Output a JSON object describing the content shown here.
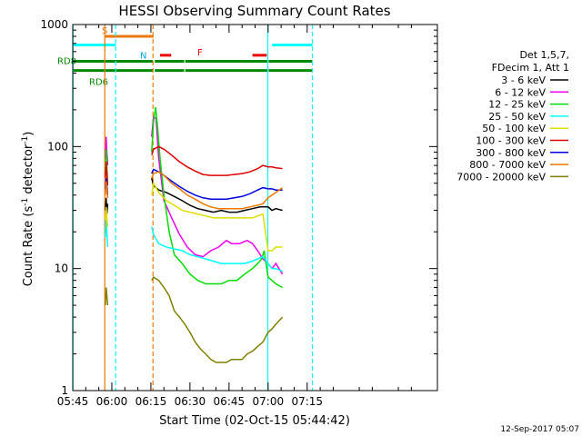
{
  "chart_data": {
    "type": "line",
    "title": "HESSI Observing Summary Count Rates",
    "xlabel": "Start Time (02-Oct-15 05:44:42)",
    "ylabel_main": "Count Rate (s",
    "ylabel_sup1": "-1",
    "ylabel_mid": " detector",
    "ylabel_sup2": "-1",
    "ylabel_end": ")",
    "xlim_min": [
      345,
      485
    ],
    "ylim": [
      1,
      1000
    ],
    "yscale": "log",
    "x_ticks": [
      {
        "min": 345,
        "label": "05:45"
      },
      {
        "min": 360,
        "label": "06:00"
      },
      {
        "min": 375,
        "label": "06:15"
      },
      {
        "min": 390,
        "label": "06:30"
      },
      {
        "min": 405,
        "label": "06:45"
      },
      {
        "min": 420,
        "label": "07:00"
      },
      {
        "min": 435,
        "label": "07:15"
      }
    ],
    "y_ticks": [
      {
        "value": 1,
        "label": "1"
      },
      {
        "value": 10,
        "label": "10"
      },
      {
        "value": 100,
        "label": "100"
      },
      {
        "value": 1000,
        "label": "1000"
      }
    ],
    "legend": {
      "position": "right",
      "header": [
        "Det 1,5,7,",
        "FDecim 1, Att 1"
      ]
    },
    "series": [
      {
        "name": "3 - 6 keV",
        "color": "#000000",
        "points": [
          [
            357.5,
            30
          ],
          [
            357.8,
            38
          ],
          [
            358.1,
            28
          ],
          [
            358.4,
            34
          ],
          [
            375.3,
            55
          ],
          [
            376,
            48
          ],
          [
            378,
            44
          ],
          [
            381,
            42
          ],
          [
            384,
            39
          ],
          [
            387,
            36
          ],
          [
            390,
            33
          ],
          [
            393,
            31
          ],
          [
            396,
            30
          ],
          [
            399,
            29
          ],
          [
            402,
            30
          ],
          [
            405,
            29
          ],
          [
            408,
            29
          ],
          [
            411,
            30
          ],
          [
            414,
            31
          ],
          [
            417,
            32
          ],
          [
            420,
            32
          ],
          [
            421.5,
            30
          ],
          [
            423,
            31
          ],
          [
            425.5,
            30
          ]
        ]
      },
      {
        "name": "6 - 12 keV",
        "color": "#ee00ee",
        "points": [
          [
            357.5,
            80
          ],
          [
            357.8,
            120
          ],
          [
            358.1,
            90
          ],
          [
            358.4,
            70
          ],
          [
            375.3,
            120
          ],
          [
            376,
            175
          ],
          [
            377,
            170
          ],
          [
            378,
            80
          ],
          [
            380,
            36
          ],
          [
            383,
            26
          ],
          [
            386,
            19
          ],
          [
            389,
            15
          ],
          [
            392,
            13
          ],
          [
            395,
            12.5
          ],
          [
            398,
            14
          ],
          [
            401,
            15
          ],
          [
            404,
            17
          ],
          [
            406,
            16
          ],
          [
            409,
            16
          ],
          [
            412,
            17
          ],
          [
            414,
            16
          ],
          [
            416,
            14
          ],
          [
            418,
            12
          ],
          [
            420,
            11
          ],
          [
            421.5,
            10
          ],
          [
            423,
            11
          ],
          [
            425.5,
            9
          ]
        ]
      },
      {
        "name": "12 - 25 keV",
        "color": "#00dd00",
        "points": [
          [
            357.5,
            60
          ],
          [
            357.8,
            95
          ],
          [
            358.1,
            70
          ],
          [
            358.4,
            50
          ],
          [
            375.3,
            90
          ],
          [
            376,
            160
          ],
          [
            376.8,
            210
          ],
          [
            377.5,
            150
          ],
          [
            378.5,
            80
          ],
          [
            380,
            40
          ],
          [
            382,
            20
          ],
          [
            384,
            13
          ],
          [
            387,
            11
          ],
          [
            390,
            9
          ],
          [
            393,
            8
          ],
          [
            396,
            7.5
          ],
          [
            399,
            7.5
          ],
          [
            402,
            7.5
          ],
          [
            405,
            8
          ],
          [
            408,
            8
          ],
          [
            411,
            9
          ],
          [
            414,
            10
          ],
          [
            416,
            11
          ],
          [
            417.5,
            12
          ],
          [
            418.5,
            14
          ],
          [
            420,
            8.5
          ],
          [
            421.5,
            8
          ],
          [
            423,
            7.5
          ],
          [
            425.5,
            7
          ]
        ]
      },
      {
        "name": "25 - 50 keV",
        "color": "#00ffff",
        "points": [
          [
            357.5,
            18
          ],
          [
            357.8,
            25
          ],
          [
            358.1,
            20
          ],
          [
            358.4,
            15
          ],
          [
            375.3,
            22
          ],
          [
            376,
            19
          ],
          [
            378,
            16
          ],
          [
            381,
            15
          ],
          [
            384,
            14.5
          ],
          [
            387,
            14
          ],
          [
            390,
            13
          ],
          [
            393,
            12.5
          ],
          [
            396,
            12
          ],
          [
            399,
            11.5
          ],
          [
            402,
            11
          ],
          [
            405,
            11
          ],
          [
            408,
            11
          ],
          [
            411,
            11
          ],
          [
            414,
            11.5
          ],
          [
            416,
            12
          ],
          [
            418,
            12.5
          ],
          [
            420,
            11
          ],
          [
            421.5,
            10
          ],
          [
            423,
            10
          ],
          [
            425.5,
            9.5
          ]
        ]
      },
      {
        "name": "50 - 100 keV",
        "color": "#dddd00",
        "points": [
          [
            357.5,
            25
          ],
          [
            357.8,
            32
          ],
          [
            358.1,
            26
          ],
          [
            358.4,
            22
          ],
          [
            375.3,
            40
          ],
          [
            376,
            50
          ],
          [
            378,
            42
          ],
          [
            381,
            36
          ],
          [
            384,
            33
          ],
          [
            387,
            30
          ],
          [
            390,
            29
          ],
          [
            393,
            28
          ],
          [
            396,
            27
          ],
          [
            399,
            26
          ],
          [
            402,
            26
          ],
          [
            405,
            26
          ],
          [
            408,
            26
          ],
          [
            411,
            26
          ],
          [
            414,
            26
          ],
          [
            416,
            27
          ],
          [
            418,
            28
          ],
          [
            420,
            14
          ],
          [
            421.5,
            14
          ],
          [
            423,
            15
          ],
          [
            425.5,
            15
          ]
        ]
      },
      {
        "name": "100 - 300 keV",
        "color": "#dd0000",
        "points": [
          [
            357.5,
            55
          ],
          [
            357.8,
            75
          ],
          [
            358.1,
            60
          ],
          [
            358.4,
            48
          ],
          [
            375.3,
            85
          ],
          [
            376,
            95
          ],
          [
            378,
            100
          ],
          [
            380,
            95
          ],
          [
            383,
            85
          ],
          [
            386,
            75
          ],
          [
            389,
            68
          ],
          [
            392,
            63
          ],
          [
            395,
            59
          ],
          [
            398,
            58
          ],
          [
            401,
            58
          ],
          [
            404,
            58
          ],
          [
            407,
            59
          ],
          [
            410,
            60
          ],
          [
            413,
            62
          ],
          [
            416,
            66
          ],
          [
            418,
            70
          ],
          [
            420,
            68
          ],
          [
            421.5,
            68
          ],
          [
            423,
            67
          ],
          [
            425.5,
            66
          ]
        ]
      },
      {
        "name": "300 - 800 keV",
        "color": "#0000dd",
        "points": [
          [
            357.5,
            45
          ],
          [
            357.8,
            55
          ],
          [
            358.1,
            48
          ],
          [
            358.4,
            40
          ],
          [
            375.3,
            60
          ],
          [
            376,
            65
          ],
          [
            378,
            62
          ],
          [
            380,
            58
          ],
          [
            383,
            52
          ],
          [
            386,
            47
          ],
          [
            389,
            43
          ],
          [
            392,
            40
          ],
          [
            395,
            38
          ],
          [
            398,
            37
          ],
          [
            401,
            37
          ],
          [
            404,
            37
          ],
          [
            407,
            38
          ],
          [
            410,
            39
          ],
          [
            413,
            41
          ],
          [
            416,
            44
          ],
          [
            418,
            46
          ],
          [
            420,
            45
          ],
          [
            421.5,
            45
          ],
          [
            423,
            44
          ],
          [
            425.5,
            44
          ]
        ]
      },
      {
        "name": "800 - 7000 keV",
        "color": "#ee7700",
        "points": [
          [
            357.5,
            40
          ],
          [
            357.8,
            52
          ],
          [
            358.1,
            44
          ],
          [
            358.4,
            38
          ],
          [
            375.3,
            55
          ],
          [
            376,
            60
          ],
          [
            378,
            62
          ],
          [
            380,
            58
          ],
          [
            383,
            50
          ],
          [
            386,
            45
          ],
          [
            389,
            40
          ],
          [
            392,
            37
          ],
          [
            395,
            34
          ],
          [
            398,
            32
          ],
          [
            401,
            31
          ],
          [
            404,
            31
          ],
          [
            407,
            31
          ],
          [
            410,
            31
          ],
          [
            413,
            32
          ],
          [
            416,
            33
          ],
          [
            418,
            34
          ],
          [
            420,
            38
          ],
          [
            421.5,
            40
          ],
          [
            423,
            42
          ],
          [
            425.5,
            46
          ]
        ]
      },
      {
        "name": "7000 - 20000 keV",
        "color": "#808000",
        "points": [
          [
            357.5,
            5
          ],
          [
            357.8,
            7
          ],
          [
            358.1,
            6
          ],
          [
            358.4,
            5
          ],
          [
            375.3,
            8
          ],
          [
            376,
            8.5
          ],
          [
            378,
            8
          ],
          [
            380,
            7
          ],
          [
            382,
            6
          ],
          [
            384,
            4.5
          ],
          [
            386,
            4
          ],
          [
            388,
            3.5
          ],
          [
            390,
            3
          ],
          [
            392,
            2.5
          ],
          [
            394,
            2.2
          ],
          [
            396,
            2
          ],
          [
            398,
            1.8
          ],
          [
            400,
            1.7
          ],
          [
            402,
            1.7
          ],
          [
            404,
            1.7
          ],
          [
            406,
            1.8
          ],
          [
            408,
            1.8
          ],
          [
            410,
            1.8
          ],
          [
            412,
            2
          ],
          [
            414,
            2.1
          ],
          [
            416,
            2.3
          ],
          [
            418,
            2.5
          ],
          [
            420,
            3
          ],
          [
            421.5,
            3.2
          ],
          [
            423,
            3.5
          ],
          [
            425.5,
            4
          ]
        ]
      }
    ],
    "flag_bars": [
      {
        "label": "S",
        "label_color": "#ee7700",
        "color": "#ee7700",
        "level": 800,
        "segments": [
          [
            357.3,
            376
          ]
        ]
      },
      {
        "label": "N",
        "label_color": "#00aadd",
        "color": "#00ffff",
        "level": 680,
        "segments": [
          [
            345,
            361.5
          ],
          [
            421.5,
            437
          ]
        ]
      },
      {
        "label": "F",
        "label_color": "#ee0000",
        "color": "#ee0000",
        "level": 560,
        "segments": [
          [
            378.5,
            382.8
          ],
          [
            414,
            419.5
          ]
        ]
      },
      {
        "label": "RD8",
        "label_color": "#008800",
        "color": "#008800",
        "level": 500,
        "segments": [
          [
            345,
            375.8
          ],
          [
            376.5,
            387.8
          ],
          [
            388.2,
            419.8
          ],
          [
            420.2,
            437
          ]
        ]
      },
      {
        "label": "RD6",
        "label_color": "#008800",
        "color": "#008800",
        "level": 420,
        "segments": [
          [
            345,
            375.8
          ],
          [
            376.5,
            387.8
          ],
          [
            388.2,
            419.8
          ],
          [
            420.2,
            437
          ]
        ]
      }
    ],
    "vlines": [
      {
        "min": 345.1,
        "color": "#00ffff",
        "style": "solid"
      },
      {
        "min": 357.3,
        "color": "#ee7700",
        "style": "solid"
      },
      {
        "min": 361.5,
        "color": "#00ffff",
        "style": "dashed"
      },
      {
        "min": 375.8,
        "color": "#ee7700",
        "style": "dashed"
      },
      {
        "min": 419.9,
        "color": "#00ffff",
        "style": "solid"
      },
      {
        "min": 437,
        "color": "#00ffff",
        "style": "dashed"
      }
    ],
    "footer_date": "12-Sep-2017 05:07"
  }
}
